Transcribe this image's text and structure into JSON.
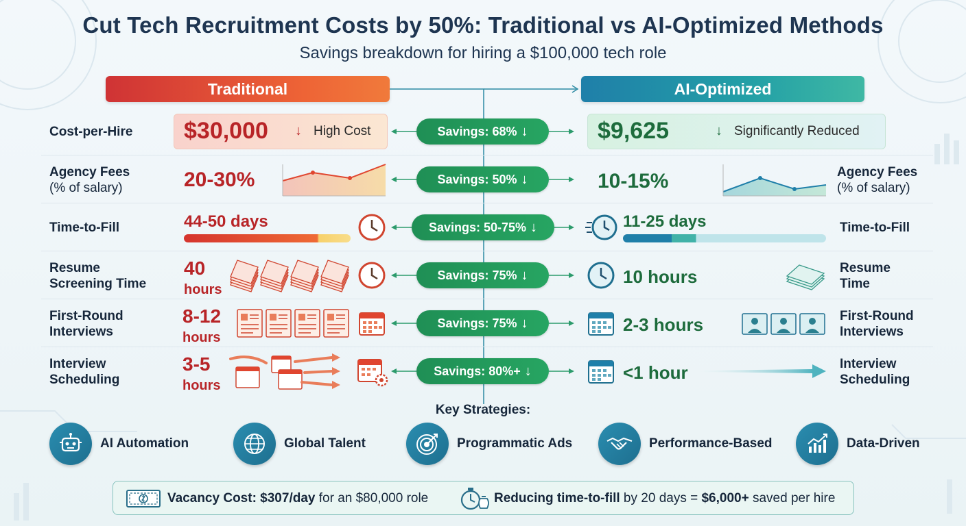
{
  "title": "Cut Tech Recruitment Costs by 50%: Traditional vs AI-Optimized Methods",
  "subtitle": "Savings breakdown for hiring a $100,000 tech role",
  "headers": {
    "traditional": "Traditional",
    "ai": "AI-Optimized"
  },
  "rows": {
    "cost": {
      "label": "Cost-per-Hire",
      "trad_value": "$30,000",
      "trad_note": "High Cost",
      "savings": "Savings: 68%",
      "ai_value": "$9,625",
      "ai_note": "Significantly Reduced"
    },
    "fees": {
      "label": "Agency Fees",
      "label_sub": "(% of salary)",
      "trad_value": "20-30%",
      "savings": "Savings: 50%",
      "ai_value": "10-15%",
      "ai_label": "Agency Fees",
      "ai_label_sub": "(% of salary)"
    },
    "fill": {
      "label": "Time-to-Fill",
      "trad_value": "44-50 days",
      "savings": "Savings: 50-75%",
      "ai_value": "11-25 days",
      "ai_label": "Time-to-Fill"
    },
    "resume": {
      "label_1": "Resume",
      "label_2": "Screening Time",
      "trad_value_1": "40",
      "trad_value_2": "hours",
      "savings": "Savings: 75%",
      "ai_value": "10 hours",
      "ai_label_1": "Resume",
      "ai_label_2": "Time"
    },
    "interview": {
      "label_1": "First-Round",
      "label_2": "Interviews",
      "trad_value_1": "8-12",
      "trad_value_2": "hours",
      "savings": "Savings: 75%",
      "ai_value": "2-3 hours",
      "ai_label_1": "First-Round",
      "ai_label_2": "Interviews"
    },
    "schedule": {
      "label_1": "Interview",
      "label_2": "Scheduling",
      "trad_value_1": "3-5",
      "trad_value_2": "hours",
      "savings": "Savings: 80%+",
      "ai_value": "<1 hour",
      "ai_label_1": "Interview",
      "ai_label_2": "Scheduling"
    }
  },
  "down_arrow": "↓",
  "strategies": {
    "title": "Key Strategies:",
    "items": [
      "AI Automation",
      "Global Talent",
      "Programmatic Ads",
      "Performance-Based",
      "Data-Driven"
    ],
    "icons": [
      "robot-icon",
      "globe-icon",
      "target-icon",
      "handshake-icon",
      "chart-icon"
    ]
  },
  "footer": {
    "left_bold": "Vacancy Cost: $307/day",
    "left_rest": " for an $80,000 role",
    "right_bold": "Reducing time-to-fill",
    "right_mid": " by 20 days = ",
    "right_bold2": "$6,000+",
    "right_rest": " saved per hire"
  },
  "colors": {
    "traditional": "#e0452f",
    "ai": "#1f8aa8",
    "savings": "#27a562"
  }
}
